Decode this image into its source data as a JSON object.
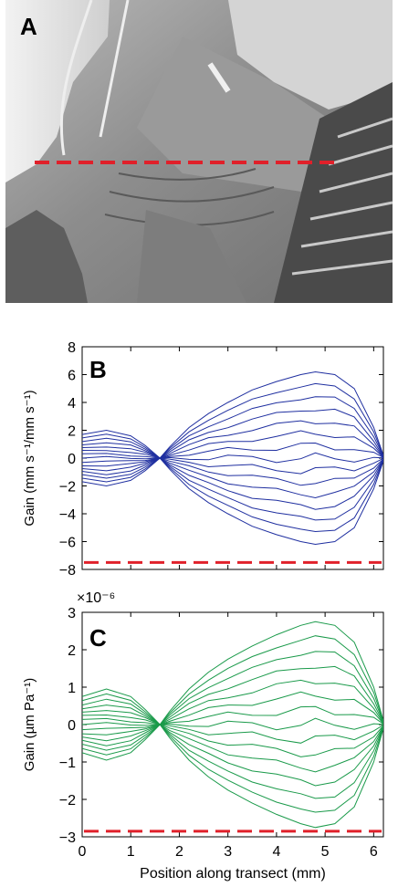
{
  "panels": {
    "a": {
      "letter": "A"
    },
    "b": {
      "letter": "B"
    },
    "c": {
      "letter": "C"
    }
  },
  "colors": {
    "series_b": "#1f2fa0",
    "series_c": "#1a9a4a",
    "dashed_line": "#e0202a"
  },
  "chart_data": [
    {
      "panel": "B",
      "type": "line",
      "xlabel": "",
      "ylabel": "Gain (mm s⁻¹/mm s⁻¹)",
      "xlim": [
        0,
        6.2
      ],
      "ylim": [
        -8,
        8
      ],
      "xticks": [
        0,
        1,
        2,
        3,
        4,
        5,
        6
      ],
      "xtick_labels": [
        "",
        "",
        "",
        "",
        "",
        "",
        ""
      ],
      "yticks": [
        -8,
        -6,
        -4,
        -2,
        0,
        2,
        4,
        6,
        8
      ],
      "ytick_labels": [
        "−8",
        "−6",
        "−4",
        "−2",
        "0",
        "2",
        "4",
        "6",
        "8"
      ],
      "x": [
        0,
        0.5,
        1.0,
        1.3,
        1.6,
        1.8,
        2.2,
        2.6,
        3.0,
        3.5,
        4.0,
        4.5,
        4.8,
        5.2,
        5.6,
        6.0,
        6.2
      ],
      "envelope_upper": [
        1.7,
        2.0,
        1.6,
        0.9,
        0.0,
        0.8,
        2.2,
        3.2,
        4.0,
        4.9,
        5.5,
        6.0,
        6.2,
        6.0,
        5.0,
        2.2,
        0.2
      ],
      "series_count": 15,
      "reference_line": {
        "y": -7.5,
        "style": "dashed"
      }
    },
    {
      "panel": "C",
      "type": "line",
      "xlabel": "Position along transect (mm)",
      "ylabel": "Gain (µm Pa⁻¹)",
      "scale_label": "×10⁻⁶",
      "xlim": [
        0,
        6.2
      ],
      "ylim": [
        -3,
        3
      ],
      "xticks": [
        0,
        1,
        2,
        3,
        4,
        5,
        6
      ],
      "xtick_labels": [
        "0",
        "1",
        "2",
        "3",
        "4",
        "5",
        "6"
      ],
      "yticks": [
        -3,
        -2,
        -1,
        0,
        1,
        2,
        3
      ],
      "ytick_labels": [
        "−3",
        "−2",
        "−1",
        "0",
        "1",
        "2",
        "3"
      ],
      "x": [
        0,
        0.5,
        1.0,
        1.3,
        1.6,
        1.8,
        2.2,
        2.6,
        3.0,
        3.5,
        4.0,
        4.5,
        4.8,
        5.2,
        5.6,
        6.0,
        6.2
      ],
      "envelope_upper": [
        0.75,
        0.95,
        0.75,
        0.4,
        0.0,
        0.35,
        0.95,
        1.4,
        1.75,
        2.1,
        2.4,
        2.65,
        2.75,
        2.65,
        2.2,
        1.0,
        0.1
      ],
      "series_count": 15,
      "reference_line": {
        "y": -2.85,
        "style": "dashed"
      }
    }
  ]
}
